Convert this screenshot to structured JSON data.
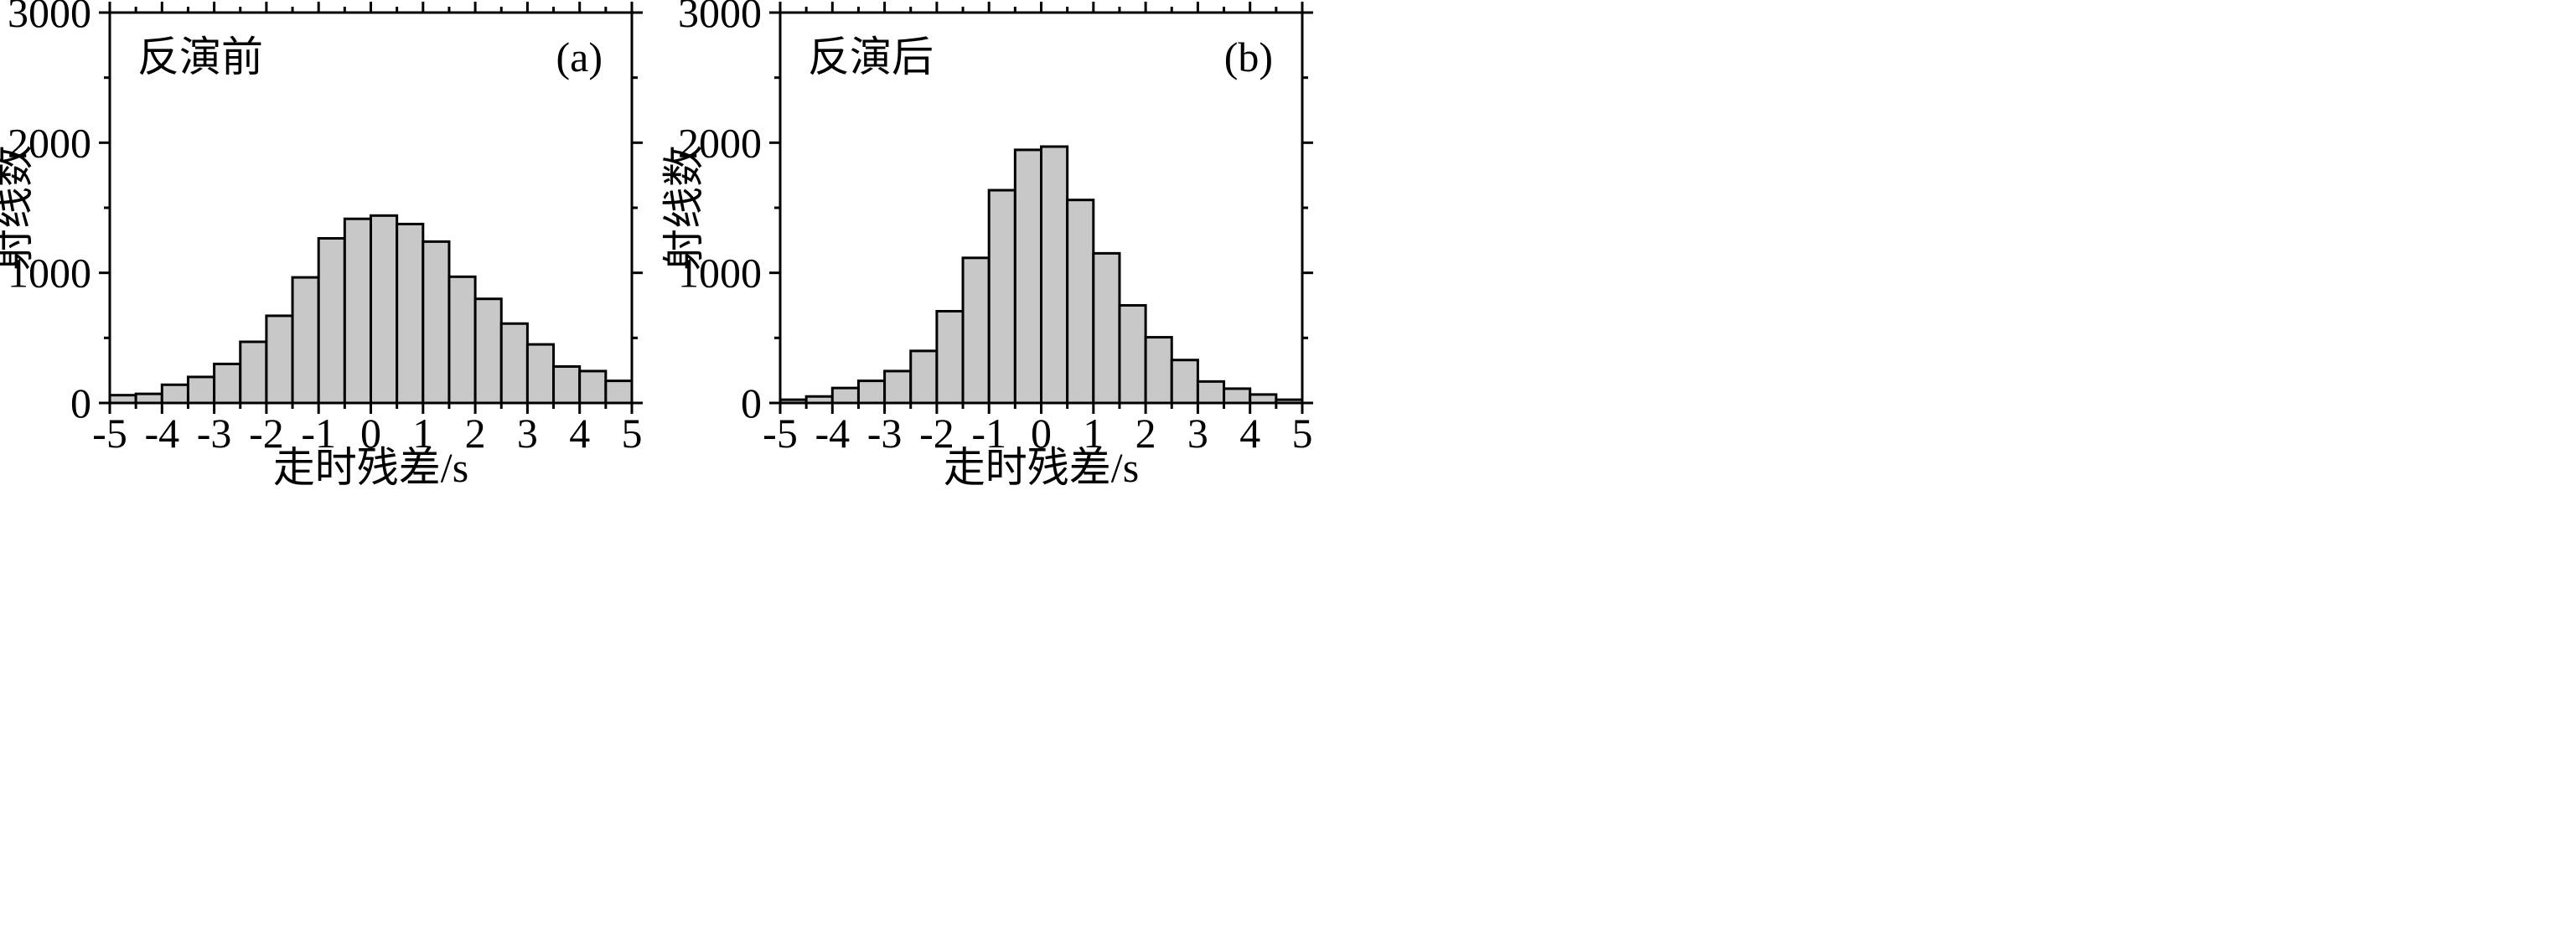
{
  "chart_data": [
    {
      "type": "bar",
      "panel_label": "(a)",
      "annotation": "反演前",
      "xlabel": "走时残差/s",
      "ylabel": "射线数",
      "xlim": [
        -5,
        5
      ],
      "ylim": [
        0,
        3000
      ],
      "x_ticks": [
        "-5",
        "-4",
        "-3",
        "-2",
        "-1",
        "0",
        "1",
        "2",
        "3",
        "4",
        "5"
      ],
      "y_ticks": [
        "0",
        "1000",
        "2000",
        "3000"
      ],
      "bin_width": 0.5,
      "bin_starts": [
        -5,
        -4.5,
        -4,
        -3.5,
        -3,
        -2.5,
        -2,
        -1.5,
        -1,
        -0.5,
        0,
        0.5,
        1,
        1.5,
        2,
        2.5,
        3,
        3.5,
        4,
        4.5
      ],
      "values": [
        60,
        70,
        140,
        200,
        300,
        470,
        670,
        965,
        1265,
        1415,
        1440,
        1375,
        1240,
        970,
        800,
        610,
        450,
        280,
        245,
        170
      ],
      "bar_color": "#c8c8c8"
    },
    {
      "type": "bar",
      "panel_label": "(b)",
      "annotation": "反演后",
      "xlabel": "走时残差/s",
      "ylabel": "射线数",
      "xlim": [
        -5,
        5
      ],
      "ylim": [
        0,
        3000
      ],
      "x_ticks": [
        "-5",
        "-4",
        "-3",
        "-2",
        "-1",
        "0",
        "1",
        "2",
        "3",
        "4",
        "5"
      ],
      "y_ticks": [
        "0",
        "1000",
        "2000",
        "3000"
      ],
      "bin_width": 0.5,
      "bin_starts": [
        -5,
        -4.5,
        -4,
        -3.5,
        -3,
        -2.5,
        -2,
        -1.5,
        -1,
        -0.5,
        0,
        0.5,
        1,
        1.5,
        2,
        2.5,
        3,
        3.5,
        4,
        4.5
      ],
      "values": [
        25,
        50,
        115,
        170,
        245,
        400,
        705,
        1115,
        1635,
        1945,
        1970,
        1560,
        1150,
        750,
        505,
        330,
        165,
        110,
        65,
        25
      ],
      "bar_color": "#c8c8c8"
    }
  ]
}
